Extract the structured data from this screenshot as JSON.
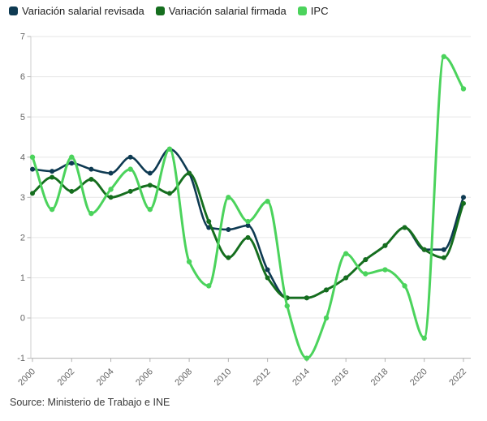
{
  "legend": {
    "items": [
      {
        "label": "Variación salarial revisada"
      },
      {
        "label": "Variación salarial firmada"
      },
      {
        "label": "IPC"
      }
    ]
  },
  "source": {
    "text": "Source: Ministerio de Trabajo e INE"
  },
  "colors": {
    "revisada": "#0e3a52",
    "firmada": "#156e1e",
    "ipc": "#4bd35c",
    "grid": "#e6e6e6",
    "axis": "#b3b3b3",
    "tick_text": "#666666"
  },
  "chart_data": {
    "type": "line",
    "x": [
      2000,
      2001,
      2002,
      2003,
      2004,
      2005,
      2006,
      2007,
      2008,
      2009,
      2010,
      2011,
      2012,
      2013,
      2014,
      2015,
      2016,
      2017,
      2018,
      2019,
      2020,
      2021,
      2022
    ],
    "series": [
      {
        "name": "Variación salarial revisada",
        "color": "#0e3a52",
        "values": [
          3.7,
          3.65,
          3.85,
          3.7,
          3.6,
          4.0,
          3.6,
          4.2,
          3.6,
          2.25,
          2.2,
          2.3,
          1.2,
          0.5,
          0.5,
          0.7,
          1.0,
          1.45,
          1.8,
          2.25,
          1.7,
          1.7,
          3.0
        ]
      },
      {
        "name": "Variación salarial firmada",
        "color": "#156e1e",
        "values": [
          3.1,
          3.5,
          3.15,
          3.45,
          3.0,
          3.15,
          3.3,
          3.1,
          3.6,
          2.4,
          1.5,
          2.0,
          1.0,
          0.5,
          0.5,
          0.7,
          1.0,
          1.45,
          1.8,
          2.25,
          1.7,
          1.5,
          2.85
        ]
      },
      {
        "name": "IPC",
        "color": "#4bd35c",
        "values": [
          4.0,
          2.7,
          4.0,
          2.6,
          3.2,
          3.7,
          2.7,
          4.2,
          1.4,
          0.8,
          3.0,
          2.4,
          2.9,
          0.3,
          -1.0,
          0.0,
          1.6,
          1.1,
          1.2,
          0.8,
          -0.5,
          6.5,
          5.7
        ]
      }
    ],
    "ylim": [
      -1,
      7
    ],
    "yticks": [
      -1,
      0,
      1,
      2,
      3,
      4,
      5,
      6,
      7
    ],
    "xticks": [
      2000,
      2002,
      2004,
      2006,
      2008,
      2010,
      2012,
      2014,
      2016,
      2018,
      2020,
      2022
    ],
    "grid": "horizontal",
    "legend_position": "top",
    "title": "",
    "xlabel": "",
    "ylabel": ""
  }
}
